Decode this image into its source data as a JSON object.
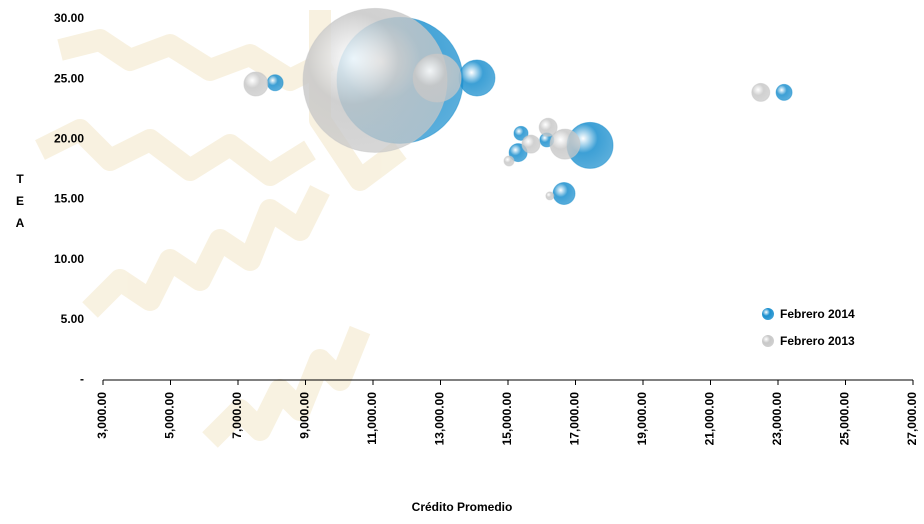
{
  "chart_data": {
    "type": "bubble",
    "x_label": "Crédito Promedio",
    "y_label": "T E A",
    "xlim": [
      3000,
      27000
    ],
    "ylim": [
      0,
      30
    ],
    "xticks": [
      {
        "value": 3000,
        "label": "3,000.00"
      },
      {
        "value": 5000,
        "label": "5,000.00"
      },
      {
        "value": 7000,
        "label": "7,000.00"
      },
      {
        "value": 9000,
        "label": "9,000.00"
      },
      {
        "value": 11000,
        "label": "11,000.00"
      },
      {
        "value": 13000,
        "label": "13,000.00"
      },
      {
        "value": 15000,
        "label": "15,000.00"
      },
      {
        "value": 17000,
        "label": "17,000.00"
      },
      {
        "value": 19000,
        "label": "19,000.00"
      },
      {
        "value": 21000,
        "label": "21,000.00"
      },
      {
        "value": 23000,
        "label": "23,000.00"
      },
      {
        "value": 25000,
        "label": "25,000.00"
      },
      {
        "value": 27000,
        "label": "27,000.00"
      }
    ],
    "yticks": [
      {
        "value": 0,
        "label": "-"
      },
      {
        "value": 5,
        "label": "5.00"
      },
      {
        "value": 10,
        "label": "10.00"
      },
      {
        "value": 15,
        "label": "15.00"
      },
      {
        "value": 20,
        "label": "20.00"
      },
      {
        "value": 25,
        "label": "25.00"
      },
      {
        "value": 30,
        "label": "30.00"
      }
    ],
    "legend": "lower right",
    "series": [
      {
        "name": "Febrero 2014",
        "color": "#1b8fce",
        "x": [
          8100,
          11800,
          14080,
          15385,
          16150,
          15300,
          17430,
          16660,
          23180
        ],
        "values": [
          24.7,
          24.9,
          25.1,
          20.5,
          19.95,
          18.9,
          19.5,
          15.5,
          23.9
        ],
        "sizes": [
          64,
          3969,
          324,
          49,
          49,
          81,
          529,
          121,
          64
        ]
      },
      {
        "name": "Febrero 2013",
        "color": "#c8c8c8",
        "x": [
          7530,
          11060,
          12900,
          16190,
          15680,
          16690,
          15030,
          16240,
          22490
        ],
        "values": [
          24.6,
          24.9,
          25.1,
          21.0,
          19.6,
          19.6,
          18.2,
          15.3,
          23.9
        ],
        "sizes": [
          144,
          5184,
          576,
          81,
          81,
          225,
          25,
          16,
          81
        ]
      }
    ]
  }
}
